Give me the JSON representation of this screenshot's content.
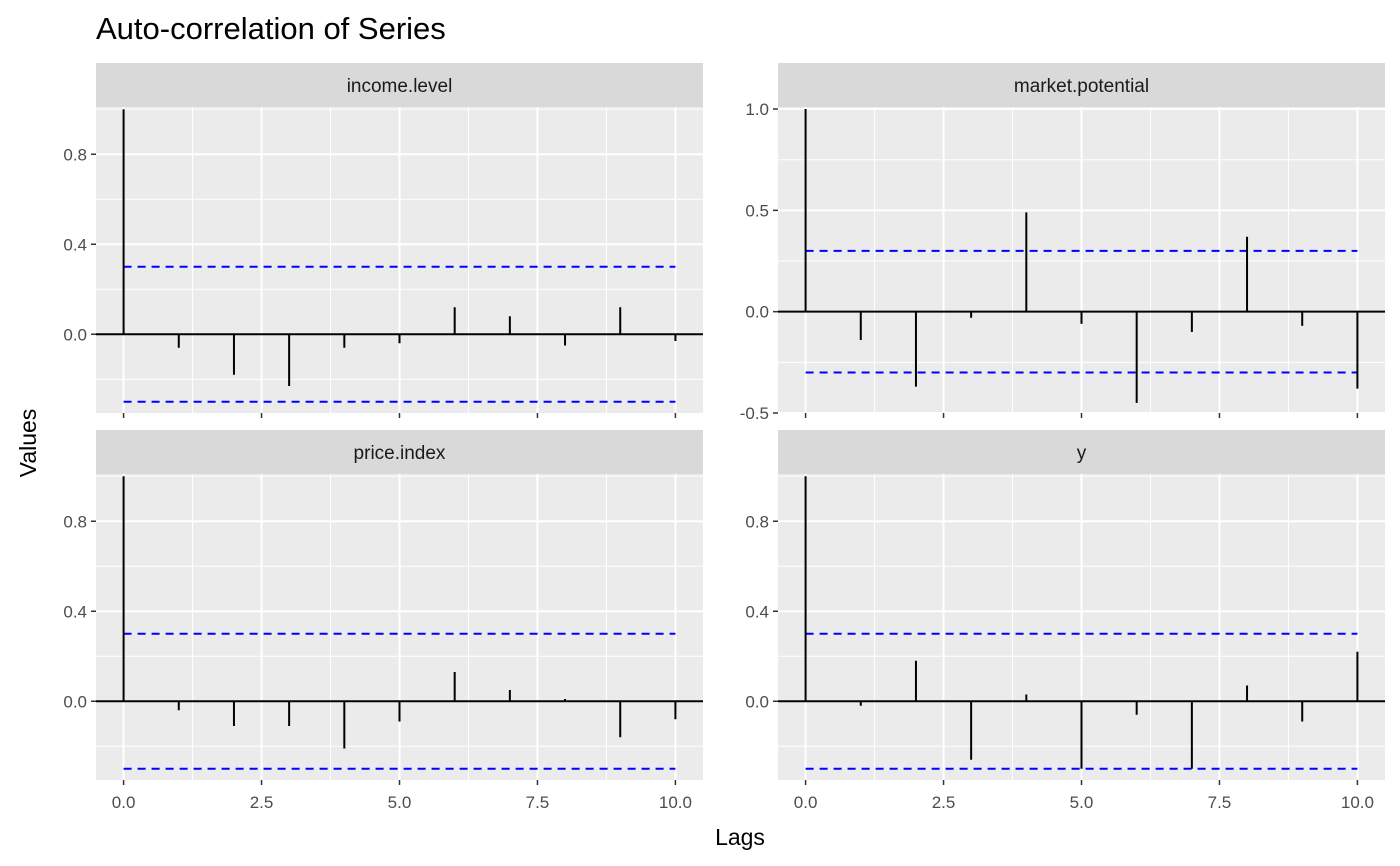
{
  "chart_data": {
    "type": "bar",
    "title": "Auto-correlation of Series",
    "xlabel": "Lags",
    "ylabel": "Values",
    "x_ticks": [
      "0.0",
      "2.5",
      "5.0",
      "7.5",
      "10.0"
    ],
    "x_tick_values": [
      0,
      2.5,
      5,
      7.5,
      10
    ],
    "xlim": [
      -0.5,
      10.5
    ],
    "grid": true,
    "lags": [
      0,
      1,
      2,
      3,
      4,
      5,
      6,
      7,
      8,
      9,
      10
    ],
    "colors": {
      "bars": "#000000",
      "confidence": "#0000ff",
      "zero_line": "#000000",
      "panel_bg": "#ebebeb",
      "strip_bg": "#d9d9d9",
      "grid": "#ffffff"
    },
    "panels": [
      {
        "name": "income.level",
        "ylim": [
          -0.35,
          1.01
        ],
        "y_ticks": [
          "0.0",
          "0.4",
          "0.8"
        ],
        "y_tick_values": [
          0,
          0.4,
          0.8
        ],
        "values": [
          1.0,
          -0.06,
          -0.18,
          -0.23,
          -0.06,
          -0.04,
          0.12,
          0.08,
          -0.05,
          0.12,
          -0.03
        ],
        "ci": [
          0.3,
          -0.3
        ]
      },
      {
        "name": "market.potential",
        "ylim": [
          -0.5,
          1.01
        ],
        "y_ticks": [
          "-0.5",
          "0.0",
          "0.5",
          "1.0"
        ],
        "y_tick_values": [
          -0.5,
          0,
          0.5,
          1.0
        ],
        "values": [
          1.0,
          -0.14,
          -0.37,
          -0.03,
          0.49,
          -0.06,
          -0.45,
          -0.1,
          0.37,
          -0.07,
          -0.38
        ],
        "ci": [
          0.3,
          -0.3
        ]
      },
      {
        "name": "price.index",
        "ylim": [
          -0.35,
          1.01
        ],
        "y_ticks": [
          "0.0",
          "0.4",
          "0.8"
        ],
        "y_tick_values": [
          0,
          0.4,
          0.8
        ],
        "values": [
          1.0,
          -0.04,
          -0.11,
          -0.11,
          -0.21,
          -0.09,
          0.13,
          0.05,
          0.01,
          -0.16,
          -0.08
        ],
        "ci": [
          0.3,
          -0.3
        ]
      },
      {
        "name": "y",
        "ylim": [
          -0.35,
          1.01
        ],
        "y_ticks": [
          "0.0",
          "0.4",
          "0.8"
        ],
        "y_tick_values": [
          0,
          0.4,
          0.8
        ],
        "values": [
          1.0,
          -0.02,
          0.18,
          -0.26,
          0.03,
          -0.3,
          -0.06,
          -0.3,
          0.07,
          -0.09,
          0.22
        ],
        "ci": [
          0.3,
          -0.3
        ]
      }
    ]
  }
}
